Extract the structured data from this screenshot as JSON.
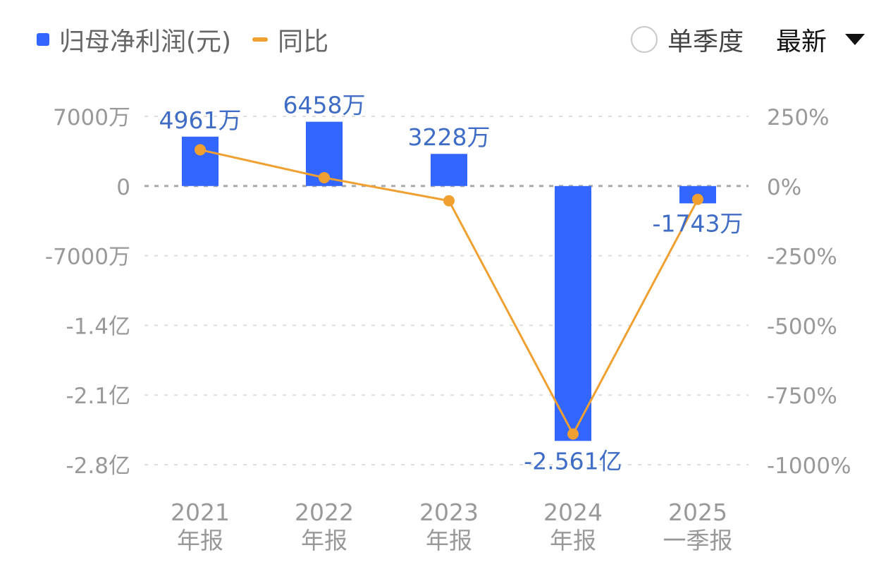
{
  "legend": {
    "bar_label": "归母净利润(元)",
    "line_label": "同比"
  },
  "controls": {
    "quarter_label": "单季度",
    "sort_label": "最新"
  },
  "colors": {
    "bar": "#3366ff",
    "line": "#f0a030",
    "axis_text": "#999999",
    "data_label": "#3f6cc4",
    "category_text": "#999999",
    "grid": "#dddddd",
    "zero_line": "#aaaaaa"
  },
  "chart_data": {
    "type": "bar",
    "categories": [
      [
        "2021",
        "年报"
      ],
      [
        "2022",
        "年报"
      ],
      [
        "2023",
        "年报"
      ],
      [
        "2024",
        "年报"
      ],
      [
        "2025",
        "一季报"
      ]
    ],
    "series": [
      {
        "name": "归母净利润(元)",
        "type": "bar",
        "axis": "left",
        "values": [
          49610000,
          64580000,
          32280000,
          -256100000,
          -17430000
        ],
        "labels": [
          "4961万",
          "6458万",
          "3228万",
          "-2.561亿",
          "-1743万"
        ]
      },
      {
        "name": "同比",
        "type": "line",
        "axis": "right",
        "values": [
          130,
          30,
          -53,
          -890,
          -48
        ]
      }
    ],
    "y_left": {
      "range": [
        -280000000,
        70000000
      ],
      "ticks": [
        70000000,
        0,
        -70000000,
        -140000000,
        -210000000,
        -280000000
      ],
      "tick_labels": [
        "7000万",
        "0",
        "-7000万",
        "-1.4亿",
        "-2.1亿",
        "-2.8亿"
      ]
    },
    "y_right": {
      "range": [
        -1000,
        250
      ],
      "ticks": [
        250,
        0,
        -250,
        -500,
        -750,
        -1000
      ],
      "tick_labels": [
        "250%",
        "0%",
        "-250%",
        "-500%",
        "-750%",
        "-1000%"
      ]
    },
    "grid": true,
    "legend_position": "top-left"
  }
}
